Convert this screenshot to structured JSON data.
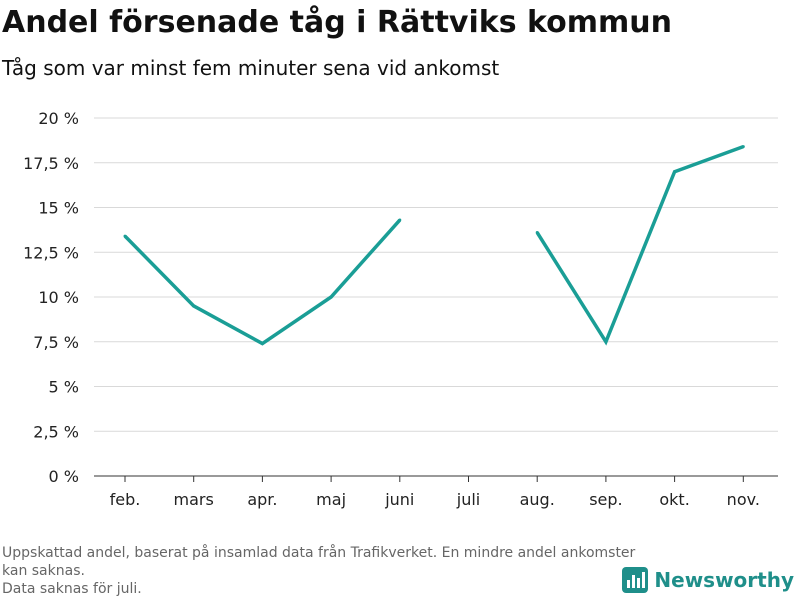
{
  "header": {
    "title": "Andel försenade tåg i Rättviks kommun",
    "subtitle": "Tåg som var minst fem minuter sena vid ankomst"
  },
  "footnote": {
    "line1": "Uppskattad andel, baserat på insamlad data från Trafikverket. En mindre andel ankomster kan saknas.",
    "line2": "Data saknas för juli."
  },
  "brand": {
    "name": "Newsworthy",
    "color": "#1f8f8a"
  },
  "colors": {
    "line": "#1a9e96",
    "grid": "#d9d9d9",
    "axis": "#333333"
  },
  "chart_data": {
    "type": "line",
    "categories": [
      "feb.",
      "mars",
      "apr.",
      "maj",
      "juni",
      "juli",
      "aug.",
      "sep.",
      "okt.",
      "nov."
    ],
    "series": [
      {
        "values": [
          13.4,
          9.5,
          7.4,
          10.0,
          14.3,
          null,
          13.6,
          7.5,
          17.0,
          18.4
        ]
      }
    ],
    "ylim": [
      0,
      20
    ],
    "yticks": [
      0,
      2.5,
      5,
      7.5,
      10,
      12.5,
      15,
      17.5,
      20
    ],
    "ytick_labels": [
      "0 %",
      "2,5 %",
      "5 %",
      "7,5 %",
      "10 %",
      "12,5 %",
      "15 %",
      "17,5 %",
      "20 %"
    ],
    "grid": true,
    "legend": "none"
  }
}
